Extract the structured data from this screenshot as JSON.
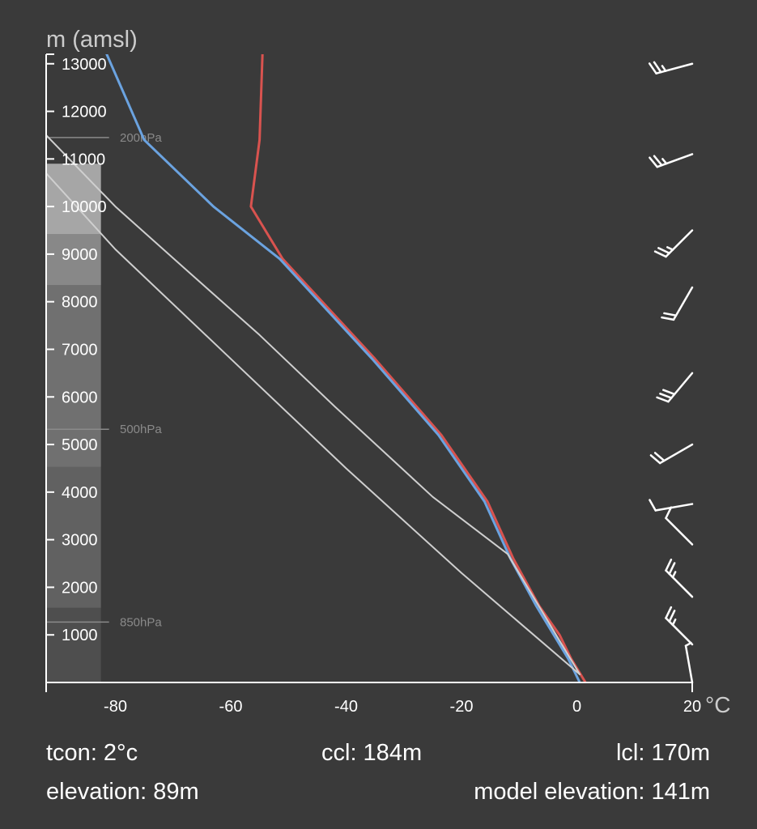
{
  "chart_data": {
    "type": "line",
    "y_axis_label": "m (amsl)",
    "x_unit": "°C",
    "xlim": [
      -92,
      20
    ],
    "ylim": [
      0,
      13200
    ],
    "x_ticks": [
      -80,
      -60,
      -40,
      -20,
      0,
      20
    ],
    "x_tick_labels": [
      "-80",
      "-60",
      "-40",
      "-20",
      "0",
      "20"
    ],
    "y_ticks": [
      1000,
      2000,
      3000,
      4000,
      5000,
      6000,
      7000,
      8000,
      9000,
      10000,
      11000,
      12000,
      13000
    ],
    "y_tick_labels": [
      "1000",
      "2000",
      "3000",
      "4000",
      "5000",
      "6000",
      "7000",
      "8000",
      "9000",
      "10000",
      "11000",
      "12000",
      "13000"
    ],
    "pressure_levels": [
      {
        "label": "200hPa",
        "height": 11450
      },
      {
        "label": "500hPa",
        "height": 5320
      },
      {
        "label": "850hPa",
        "height": 1270
      }
    ],
    "cloud_bands": [
      {
        "bottom": 0,
        "top": 1570,
        "opacity": 0.1
      },
      {
        "bottom": 1570,
        "top": 4530,
        "opacity": 0.2
      },
      {
        "bottom": 4530,
        "top": 8350,
        "opacity": 0.28
      },
      {
        "bottom": 8350,
        "top": 9420,
        "opacity": 0.4
      },
      {
        "bottom": 9420,
        "top": 10900,
        "opacity": 0.55
      }
    ],
    "series": [
      {
        "color": "#d9534f",
        "points": [
          [
            1.5,
            0
          ],
          [
            -1,
            500
          ],
          [
            -3,
            1000
          ],
          [
            -6.5,
            1600
          ],
          [
            -11,
            2600
          ],
          [
            -15.5,
            3800
          ],
          [
            -23.5,
            5200
          ],
          [
            -35,
            6800
          ],
          [
            -51,
            8900
          ],
          [
            -56.5,
            10000
          ],
          [
            -55,
            11400
          ],
          [
            -54.5,
            13200
          ]
        ]
      },
      {
        "color": "#6ba3e0",
        "points": [
          [
            0.5,
            0
          ],
          [
            -1.5,
            500
          ],
          [
            -4,
            1000
          ],
          [
            -7,
            1600
          ],
          [
            -11.5,
            2600
          ],
          [
            -16,
            3800
          ],
          [
            -24,
            5200
          ],
          [
            -35.5,
            6800
          ],
          [
            -51.5,
            8900
          ],
          [
            -63,
            10000
          ],
          [
            -75,
            11400
          ],
          [
            -81.5,
            13200
          ]
        ]
      },
      {
        "color": "#cfcfcf",
        "points": [
          [
            0.5,
            170
          ],
          [
            -12,
            2700
          ],
          [
            -25,
            3900
          ],
          [
            -42,
            5800
          ],
          [
            -55,
            7300
          ],
          [
            -68,
            8700
          ],
          [
            -80,
            10000
          ],
          [
            -92,
            11500
          ]
        ]
      },
      {
        "color": "#cfcfcf",
        "points": [
          [
            0.5,
            170
          ],
          [
            -20,
            2300
          ],
          [
            -40,
            4500
          ],
          [
            -60,
            6800
          ],
          [
            -80,
            9100
          ],
          [
            -92,
            10700
          ]
        ]
      }
    ],
    "wind_barbs": [
      {
        "height": 13000,
        "direction_deg": 255,
        "speed_kt": 25
      },
      {
        "height": 11100,
        "direction_deg": 250,
        "speed_kt": 25
      },
      {
        "height": 9500,
        "direction_deg": 225,
        "speed_kt": 25
      },
      {
        "height": 8300,
        "direction_deg": 210,
        "speed_kt": 20
      },
      {
        "height": 6500,
        "direction_deg": 220,
        "speed_kt": 30
      },
      {
        "height": 5000,
        "direction_deg": 240,
        "speed_kt": 20
      },
      {
        "height": 3750,
        "direction_deg": 260,
        "speed_kt": 10
      },
      {
        "height": 2900,
        "direction_deg": 315,
        "speed_kt": 10
      },
      {
        "height": 1800,
        "direction_deg": 315,
        "speed_kt": 25
      },
      {
        "height": 800,
        "direction_deg": 315,
        "speed_kt": 25
      },
      {
        "height": 0,
        "direction_deg": 350,
        "speed_kt": 5
      }
    ]
  },
  "footer": {
    "tcon": "tcon: 2°c",
    "ccl": "ccl: 184m",
    "lcl": "lcl: 170m",
    "elevation": "elevation: 89m",
    "model_elevation": "model elevation: 141m"
  }
}
